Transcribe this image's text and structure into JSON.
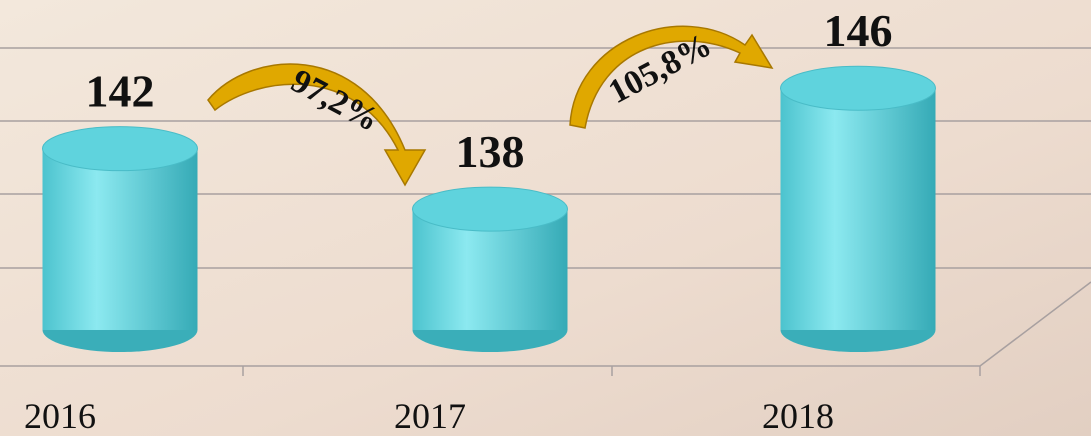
{
  "chart_data": {
    "type": "cylinder-bar",
    "categories": [
      "2016",
      "2017",
      "2018"
    ],
    "values": [
      142,
      138,
      146
    ],
    "color": "#5fd3dd",
    "ylim": [
      130,
      148
    ],
    "annotations": [
      "97,2%",
      "105,8%"
    ]
  }
}
